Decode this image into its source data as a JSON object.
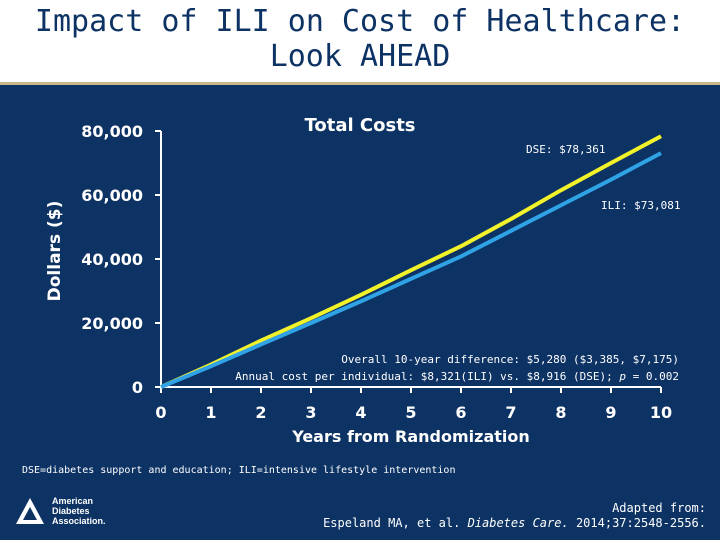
{
  "slide": {
    "title_line1": "Impact of ILI on Cost of Healthcare:",
    "title_line2": "Look AHEAD",
    "footnote": "DSE=diabetes support and education; ILI=intensive lifestyle intervention",
    "citation_line1": "Adapted from:",
    "citation_authors": "Espeland MA, et al. ",
    "citation_journal": "Diabetes Care.",
    "citation_details": " 2014;37:2548-2556.",
    "logo_lines": [
      "American",
      "Diabetes",
      "Association."
    ]
  },
  "colors": {
    "background": "#0d3264",
    "dse": "#f2f22a",
    "ili": "#2fa3e6",
    "axis": "#ffffff"
  },
  "chart_data": {
    "type": "line",
    "title": "Total Costs",
    "xlabel": "Years from Randomization",
    "ylabel": "Dollars ($)",
    "x": [
      0,
      1,
      2,
      3,
      4,
      5,
      6,
      7,
      8,
      9,
      10
    ],
    "xlim": [
      0,
      10
    ],
    "ylim": [
      0,
      80000
    ],
    "x_ticks": [
      "0",
      "1",
      "2",
      "3",
      "4",
      "5",
      "6",
      "7",
      "8",
      "9",
      "10"
    ],
    "y_ticks": [
      {
        "value": 0,
        "label": "0"
      },
      {
        "value": 20000,
        "label": "20,000"
      },
      {
        "value": 40000,
        "label": "40,000"
      },
      {
        "value": 60000,
        "label": "60,000"
      },
      {
        "value": 80000,
        "label": "80,000"
      }
    ],
    "grid": false,
    "series": [
      {
        "key": "dse",
        "color": "#f2f22a",
        "values": [
          0,
          7000,
          14500,
          21500,
          28800,
          36500,
          44000,
          52500,
          61500,
          70000,
          78361
        ]
      },
      {
        "key": "ili",
        "color": "#2fa3e6",
        "values": [
          0,
          6500,
          13300,
          20000,
          26800,
          33800,
          40800,
          48800,
          56800,
          64800,
          73081
        ]
      }
    ],
    "annotations": {
      "dse_label": "DSE: $78,361",
      "ili_label": "ILI: $73,081",
      "difference_line": "Overall 10-year difference: $5,280 ($3,385, $7,175)",
      "annual_prefix": "Annual cost per individual: $8,321(ILI) vs. $8,916 (DSE); ",
      "annual_p": "p",
      "annual_suffix": " = 0.002"
    }
  }
}
